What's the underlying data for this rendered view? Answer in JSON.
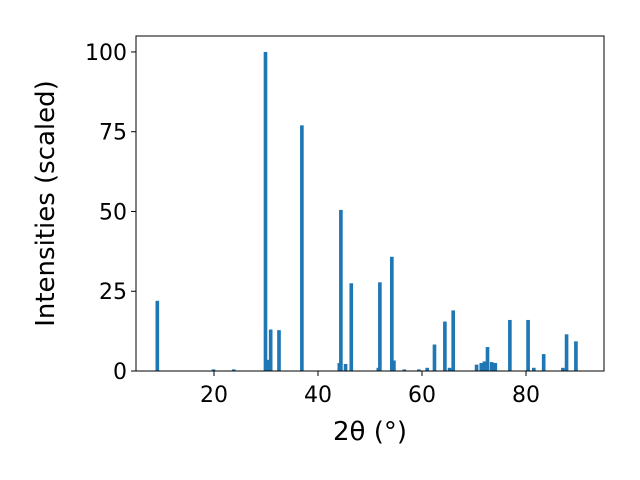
{
  "chart_data": {
    "type": "bar",
    "xlabel": "2θ (°)",
    "ylabel": "Intensities (scaled)",
    "xlim": [
      5,
      95
    ],
    "ylim": [
      0,
      105
    ],
    "xticks": [
      20,
      40,
      60,
      80
    ],
    "yticks": [
      0,
      25,
      50,
      75,
      100
    ],
    "bar_width_deg": 0.7,
    "bar_color": "#1f77b4",
    "grid": false,
    "legend": "none",
    "series": [
      {
        "x": [
          9.1,
          19.9,
          23.8,
          29.9,
          30.4,
          30.9,
          32.5,
          36.9,
          44.1,
          44.4,
          45.3,
          46.4,
          51.6,
          51.9,
          54.2,
          54.6,
          56.6,
          59.4,
          61.0,
          62.4,
          64.4,
          65.3,
          66.0,
          70.5,
          71.4,
          72.0,
          72.6,
          73.4,
          74.1,
          76.9,
          80.4,
          81.5,
          83.4,
          87.1,
          87.8,
          89.6
        ],
        "y": [
          22,
          0.5,
          0.5,
          100,
          3.5,
          13,
          12.8,
          77,
          2.5,
          50.5,
          2.2,
          27.5,
          1,
          27.8,
          35.8,
          3.3,
          0.5,
          0.5,
          1,
          8.3,
          15.5,
          1,
          19,
          2,
          2.5,
          3,
          7.5,
          2.8,
          2.5,
          16,
          16,
          1,
          5.3,
          1,
          11.5,
          9.3
        ]
      }
    ]
  }
}
